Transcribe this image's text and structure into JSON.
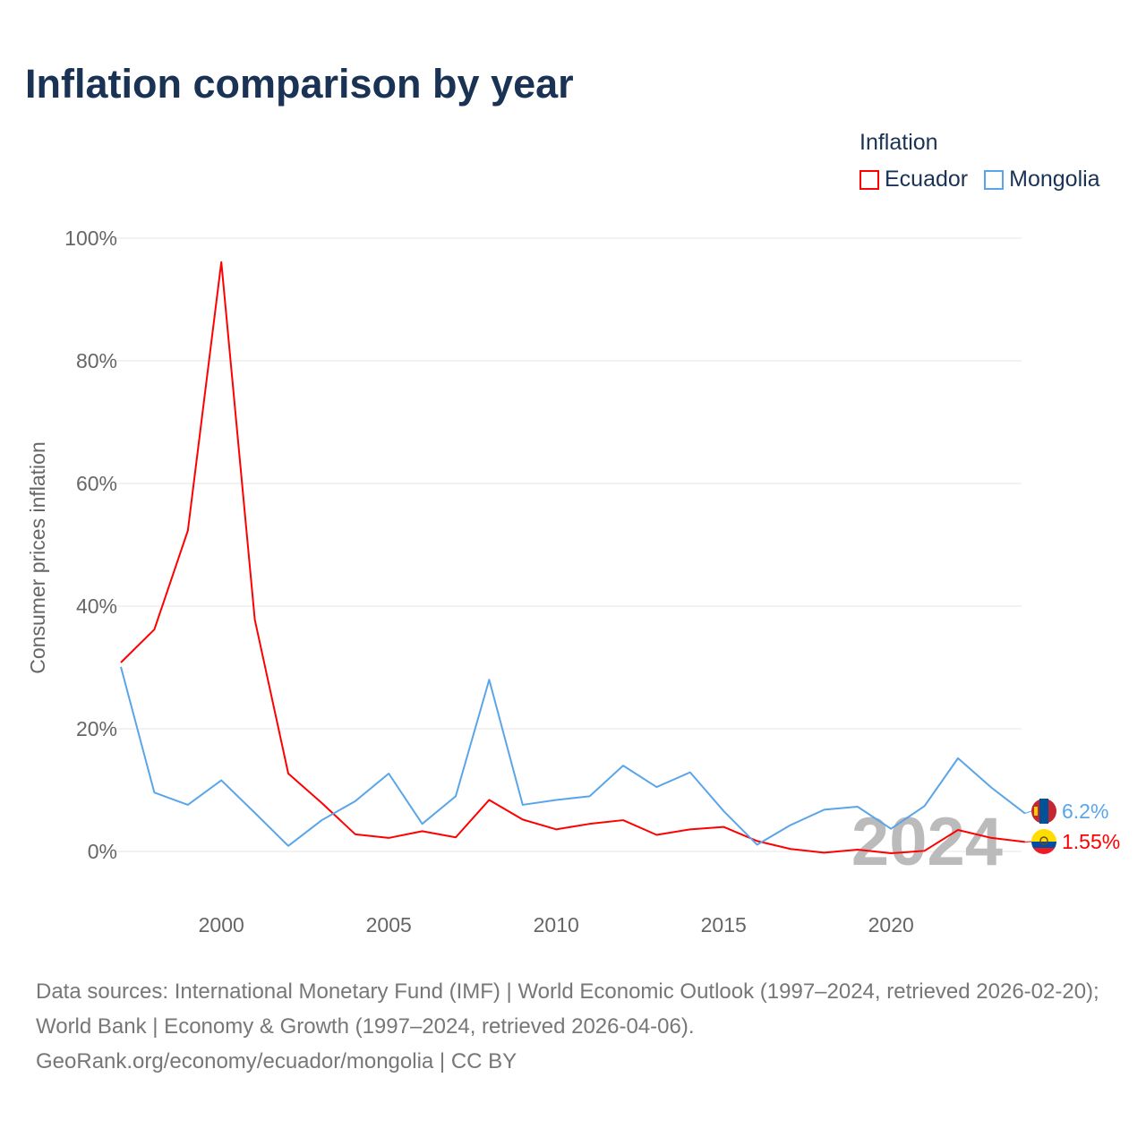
{
  "title": "Inflation comparison by year",
  "legend": {
    "title": "Inflation",
    "items": [
      {
        "label": "Ecuador",
        "color": "#ff0000"
      },
      {
        "label": "Mongolia",
        "color": "#5aa5ea"
      }
    ]
  },
  "footer": {
    "sources": "Data sources: International Monetary Fund (IMF) | World Economic Outlook (1997–2024, retrieved 2026-02-20); World Bank | Economy & Growth (1997–2024, retrieved 2026-04-06).",
    "credit": "GeoRank.org/economy/ecuador/mongolia | CC BY"
  },
  "chart_data": {
    "type": "line",
    "title": "Inflation comparison by year",
    "xlabel": "",
    "ylabel": "Consumer prices inflation",
    "xlim": [
      1997,
      2024
    ],
    "ylim": [
      -5,
      100
    ],
    "xticks": [
      2000,
      2005,
      2010,
      2015,
      2020
    ],
    "yticks": [
      0,
      20,
      40,
      60,
      80,
      100
    ],
    "ytick_labels": [
      "0%",
      "20%",
      "40%",
      "60%",
      "80%",
      "100%"
    ],
    "year_watermark": "2024",
    "x": [
      1997,
      1998,
      1999,
      2000,
      2001,
      2002,
      2003,
      2004,
      2005,
      2006,
      2007,
      2008,
      2009,
      2010,
      2011,
      2012,
      2013,
      2014,
      2015,
      2016,
      2017,
      2018,
      2019,
      2020,
      2021,
      2022,
      2023,
      2024
    ],
    "series": [
      {
        "name": "Ecuador",
        "color": "#ff0000",
        "end_label": "1.55%",
        "values": [
          30.8,
          36.2,
          52.3,
          96.1,
          37.8,
          12.7,
          7.9,
          2.8,
          2.2,
          3.3,
          2.3,
          8.4,
          5.2,
          3.6,
          4.5,
          5.1,
          2.7,
          3.6,
          4.0,
          1.7,
          0.4,
          -0.2,
          0.3,
          -0.3,
          0.1,
          3.5,
          2.2,
          1.55
        ]
      },
      {
        "name": "Mongolia",
        "color": "#5aa5ea",
        "end_label": "6.2%",
        "values": [
          30.1,
          9.6,
          7.6,
          11.6,
          6.3,
          0.9,
          5.1,
          8.2,
          12.7,
          4.5,
          9.0,
          28.0,
          7.6,
          8.4,
          9.0,
          14.0,
          10.5,
          12.9,
          6.6,
          1.1,
          4.3,
          6.8,
          7.3,
          3.7,
          7.4,
          15.2,
          10.4,
          6.2
        ]
      }
    ]
  }
}
